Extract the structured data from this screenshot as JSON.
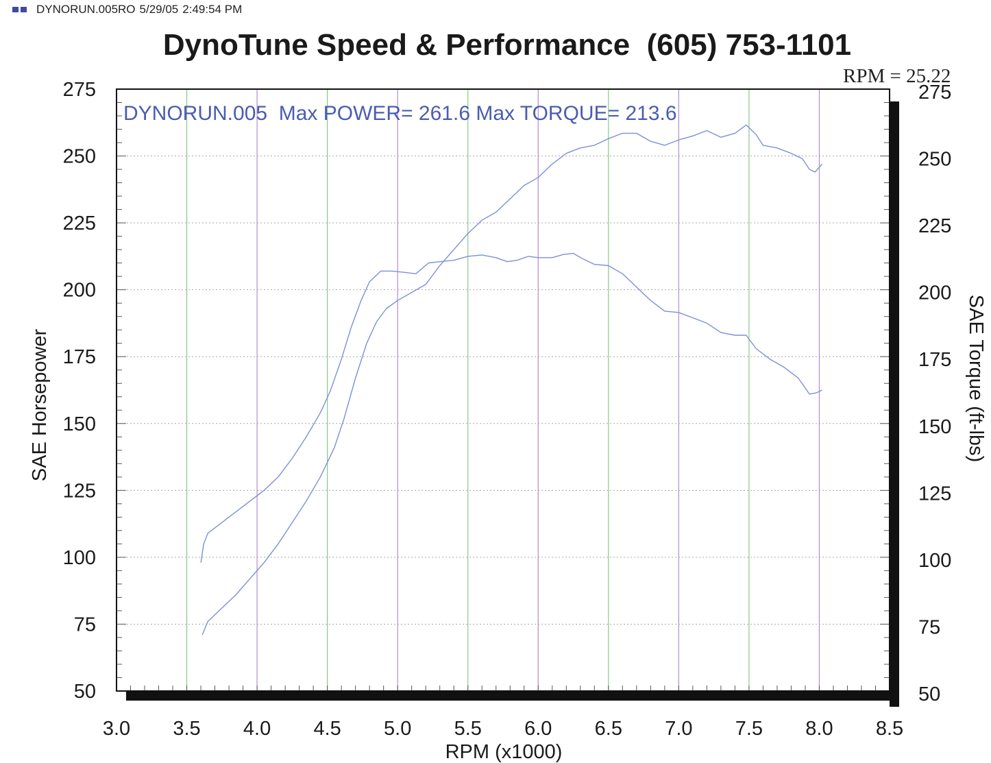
{
  "header": {
    "filename": "DYNORUN.005RO",
    "date": "5/29/05",
    "time": "2:49:54 PM",
    "icon": "window-icon"
  },
  "colors": {
    "trace": "#7d8fd6",
    "annotation": "#4a5cb0",
    "grid_dotted": "#a8a8a8",
    "grid_green": "#88c888",
    "grid_purple": "#b48cd0",
    "axis": "#111111",
    "text": "#1a1a1a"
  },
  "chart_data": {
    "type": "line",
    "title": "DynoTune Speed & Performance  (605) 753-1101",
    "rpm_readout": "RPM = 25.22",
    "annotation": "DYNORUN.005  Max POWER= 261.6 Max TORQUE= 213.6",
    "xlabel": "RPM (x1000)",
    "ylabel_left": "SAE Horsepower",
    "ylabel_right": "SAE Torque (ft-lbs)",
    "xlim": [
      3.0,
      8.5
    ],
    "ylim": [
      50,
      275
    ],
    "x_ticks": [
      "3.0",
      "3.5",
      "4.0",
      "4.5",
      "5.0",
      "5.5",
      "6.0",
      "6.5",
      "7.0",
      "7.5",
      "8.0",
      "8.5"
    ],
    "y_ticks_left": [
      "275",
      "250",
      "225",
      "200",
      "175",
      "150",
      "125",
      "100",
      "75",
      "50"
    ],
    "y_ticks_right": [
      "275",
      "250",
      "225",
      "200",
      "175",
      "150",
      "125",
      "100",
      "75",
      "50"
    ],
    "grid": true,
    "series": [
      {
        "id": "power",
        "points": [
          [
            3.61,
            71
          ],
          [
            3.65,
            76
          ],
          [
            3.75,
            81
          ],
          [
            3.85,
            86
          ],
          [
            3.95,
            92
          ],
          [
            4.05,
            98
          ],
          [
            4.15,
            105
          ],
          [
            4.25,
            113
          ],
          [
            4.35,
            121
          ],
          [
            4.45,
            130
          ],
          [
            4.55,
            141
          ],
          [
            4.62,
            152
          ],
          [
            4.7,
            167
          ],
          [
            4.78,
            180
          ],
          [
            4.85,
            188
          ],
          [
            4.92,
            193
          ],
          [
            5.0,
            196
          ],
          [
            5.1,
            199
          ],
          [
            5.2,
            202
          ],
          [
            5.3,
            209
          ],
          [
            5.4,
            215
          ],
          [
            5.5,
            221
          ],
          [
            5.6,
            226
          ],
          [
            5.7,
            229
          ],
          [
            5.8,
            234
          ],
          [
            5.9,
            239
          ],
          [
            6.0,
            242
          ],
          [
            6.1,
            247
          ],
          [
            6.2,
            251
          ],
          [
            6.3,
            253
          ],
          [
            6.4,
            254
          ],
          [
            6.5,
            256.5
          ],
          [
            6.6,
            258.5
          ],
          [
            6.7,
            258.5
          ],
          [
            6.8,
            255.5
          ],
          [
            6.9,
            254
          ],
          [
            7.0,
            256
          ],
          [
            7.1,
            257.5
          ],
          [
            7.2,
            259.5
          ],
          [
            7.3,
            257
          ],
          [
            7.4,
            258.5
          ],
          [
            7.48,
            261.6
          ],
          [
            7.55,
            258
          ],
          [
            7.6,
            254
          ],
          [
            7.7,
            253
          ],
          [
            7.8,
            251
          ],
          [
            7.88,
            249
          ],
          [
            7.93,
            245
          ],
          [
            7.97,
            244
          ],
          [
            8.02,
            247
          ]
        ]
      },
      {
        "id": "torque",
        "points": [
          [
            3.6,
            98
          ],
          [
            3.62,
            105
          ],
          [
            3.65,
            109
          ],
          [
            3.75,
            113
          ],
          [
            3.85,
            117
          ],
          [
            3.95,
            121
          ],
          [
            4.05,
            125
          ],
          [
            4.15,
            130
          ],
          [
            4.25,
            137
          ],
          [
            4.35,
            145
          ],
          [
            4.45,
            154
          ],
          [
            4.52,
            162
          ],
          [
            4.6,
            174
          ],
          [
            4.67,
            186
          ],
          [
            4.74,
            196
          ],
          [
            4.8,
            203
          ],
          [
            4.88,
            207
          ],
          [
            4.96,
            207
          ],
          [
            5.05,
            206.5
          ],
          [
            5.13,
            206
          ],
          [
            5.22,
            210
          ],
          [
            5.3,
            210.5
          ],
          [
            5.4,
            211
          ],
          [
            5.5,
            212.5
          ],
          [
            5.6,
            213
          ],
          [
            5.7,
            212
          ],
          [
            5.78,
            210.5
          ],
          [
            5.85,
            211
          ],
          [
            5.93,
            212.5
          ],
          [
            6.0,
            212
          ],
          [
            6.1,
            212
          ],
          [
            6.18,
            213.2
          ],
          [
            6.25,
            213.6
          ],
          [
            6.32,
            211.5
          ],
          [
            6.4,
            209.5
          ],
          [
            6.5,
            209
          ],
          [
            6.6,
            206
          ],
          [
            6.7,
            201
          ],
          [
            6.8,
            196
          ],
          [
            6.9,
            192
          ],
          [
            7.0,
            191.5
          ],
          [
            7.1,
            189.5
          ],
          [
            7.2,
            187.5
          ],
          [
            7.3,
            184
          ],
          [
            7.4,
            183
          ],
          [
            7.48,
            183
          ],
          [
            7.55,
            178
          ],
          [
            7.65,
            174
          ],
          [
            7.75,
            171
          ],
          [
            7.85,
            167
          ],
          [
            7.93,
            161
          ],
          [
            7.98,
            161.5
          ],
          [
            8.02,
            162.5
          ]
        ]
      }
    ]
  }
}
